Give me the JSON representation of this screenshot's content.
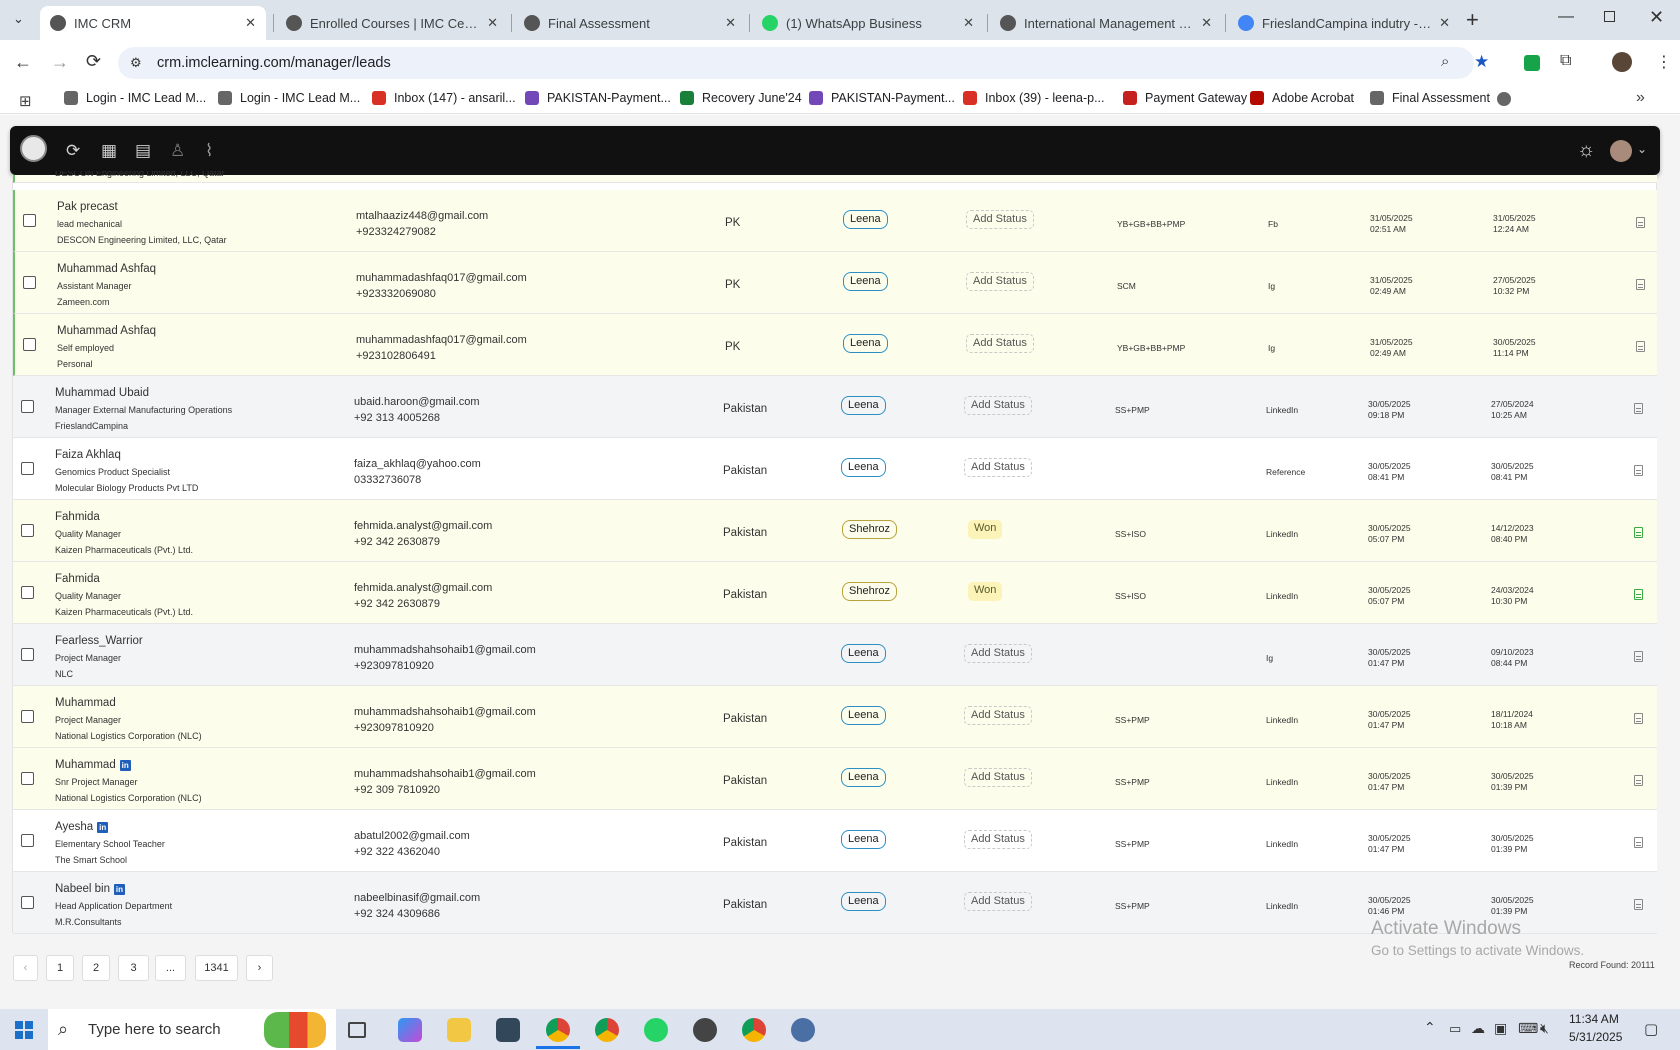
{
  "browser": {
    "tabs": [
      {
        "label": "IMC CRM",
        "active": true
      },
      {
        "label": "Enrolled Courses | IMC Certifica"
      },
      {
        "label": "Final Assessment"
      },
      {
        "label": "(1) WhatsApp Business"
      },
      {
        "label": "International Management Con"
      },
      {
        "label": "FrieslandCampina indutry - Goo"
      }
    ],
    "url": "crm.imclearning.com/manager/leads",
    "bookmarks": [
      "Login - IMC Lead M...",
      "Login - IMC Lead M...",
      "Inbox (147) - ansaril...",
      "PAKISTAN-Payment...",
      "Recovery June'24",
      "PAKISTAN-Payment...",
      "Inbox (39) - leena-p...",
      "Payment Gateway",
      "Adobe Acrobat",
      "Final Assessment"
    ]
  },
  "table": {
    "partial_top_company": "DESCON Engineering Limited, LLC, Qatar",
    "rows": [
      {
        "name": "Pak precast",
        "linkedin": false,
        "title": "lead mechanical",
        "company": "DESCON Engineering Limited, LLC, Qatar",
        "email": "mtalhaaziz448@gmail.com",
        "phone": "+923324279082",
        "country": "PK",
        "owner": "Leena",
        "status": "Add Status",
        "course": "YB+GB+BB+PMP",
        "source": "Fb",
        "date1": "31/05/2025",
        "time1": "02:51 AM",
        "date2": "31/05/2025",
        "time2": "12:24 AM",
        "bg": "yellow",
        "doc": "grey"
      },
      {
        "name": "Muhammad Ashfaq",
        "linkedin": false,
        "title": "Assistant Manager",
        "company": "Zameen.com",
        "email": "muhammadashfaq017@gmail.com",
        "phone": "+923332069080",
        "country": "PK",
        "owner": "Leena",
        "status": "Add Status",
        "course": "SCM",
        "source": "Ig",
        "date1": "31/05/2025",
        "time1": "02:49 AM",
        "date2": "27/05/2025",
        "time2": "10:32 PM",
        "bg": "yellow",
        "doc": "grey"
      },
      {
        "name": "Muhammad Ashfaq",
        "linkedin": false,
        "title": "Self employed",
        "company": "Personal",
        "email": "muhammadashfaq017@gmail.com",
        "phone": "+923102806491",
        "country": "PK",
        "owner": "Leena",
        "status": "Add Status",
        "course": "YB+GB+BB+PMP",
        "source": "Ig",
        "date1": "31/05/2025",
        "time1": "02:49 AM",
        "date2": "30/05/2025",
        "time2": "11:14 PM",
        "bg": "yellow",
        "doc": "grey"
      },
      {
        "name": "Muhammad Ubaid",
        "linkedin": false,
        "title": "Manager External Manufacturing Operations",
        "company": "FrieslandCampina",
        "email": "ubaid.haroon@gmail.com",
        "phone": "+92 313 4005268",
        "country": "Pakistan",
        "owner": "Leena",
        "status": "Add Status",
        "course": "SS+PMP",
        "source": "LinkedIn",
        "date1": "30/05/2025",
        "time1": "09:18 PM",
        "date2": "27/05/2024",
        "time2": "10:25 AM",
        "bg": "grey",
        "doc": "grey"
      },
      {
        "name": "Faiza Akhlaq",
        "linkedin": false,
        "title": "Genomics Product Specialist",
        "company": "Molecular Biology Products Pvt LTD",
        "email": "faiza_akhlaq@yahoo.com",
        "phone": "03332736078",
        "country": "Pakistan",
        "owner": "Leena",
        "status": "Add Status",
        "course": "",
        "source": "Reference",
        "date1": "30/05/2025",
        "time1": "08:41 PM",
        "date2": "30/05/2025",
        "time2": "08:41 PM",
        "bg": "white",
        "doc": "grey"
      },
      {
        "name": "Fahmida",
        "linkedin": false,
        "title": "Quality Manager",
        "company": "Kaizen Pharmaceuticals (Pvt.) Ltd.",
        "email": "fehmida.analyst@gmail.com",
        "phone": "+92 342 2630879",
        "country": "Pakistan",
        "owner": "Shehroz",
        "status": "Won",
        "course": "SS+ISO",
        "source": "LinkedIn",
        "date1": "30/05/2025",
        "time1": "05:07 PM",
        "date2": "14/12/2023",
        "time2": "08:40 PM",
        "bg": "yellow",
        "doc": "green"
      },
      {
        "name": "Fahmida",
        "linkedin": false,
        "title": "Quality Manager",
        "company": "Kaizen Pharmaceuticals (Pvt.) Ltd.",
        "email": "fehmida.analyst@gmail.com",
        "phone": "+92 342 2630879",
        "country": "Pakistan",
        "owner": "Shehroz",
        "status": "Won",
        "course": "SS+ISO",
        "source": "LinkedIn",
        "date1": "30/05/2025",
        "time1": "05:07 PM",
        "date2": "24/03/2024",
        "time2": "10:30 PM",
        "bg": "yellow",
        "doc": "green"
      },
      {
        "name": "Fearless_Warrior",
        "linkedin": false,
        "title": "Project Manager",
        "company": "NLC",
        "email": "muhammadshahsohaib1@gmail.com",
        "phone": "+923097810920",
        "country": "",
        "owner": "Leena",
        "status": "Add Status",
        "course": "",
        "source": "Ig",
        "date1": "30/05/2025",
        "time1": "01:47 PM",
        "date2": "09/10/2023",
        "time2": "08:44 PM",
        "bg": "grey",
        "doc": "grey"
      },
      {
        "name": "Muhammad",
        "linkedin": false,
        "title": "Project Manager",
        "company": "National Logistics Corporation (NLC)",
        "email": "muhammadshahsohaib1@gmail.com",
        "phone": "+923097810920",
        "country": "Pakistan",
        "owner": "Leena",
        "status": "Add Status",
        "course": "SS+PMP",
        "source": "LinkedIn",
        "date1": "30/05/2025",
        "time1": "01:47 PM",
        "date2": "18/11/2024",
        "time2": "10:18 AM",
        "bg": "yellow",
        "doc": "grey"
      },
      {
        "name": "Muhammad",
        "linkedin": true,
        "title": "Snr Project Manager",
        "company": "National Logistics Corporation (NLC)",
        "email": "muhammadshahsohaib1@gmail.com",
        "phone": "+92 309 7810920",
        "country": "Pakistan",
        "owner": "Leena",
        "status": "Add Status",
        "course": "SS+PMP",
        "source": "LinkedIn",
        "date1": "30/05/2025",
        "time1": "01:47 PM",
        "date2": "30/05/2025",
        "time2": "01:39 PM",
        "bg": "yellow",
        "doc": "grey"
      },
      {
        "name": "Ayesha",
        "linkedin": true,
        "title": "Elementary School Teacher",
        "company": "The Smart School",
        "email": "abatul2002@gmail.com",
        "phone": "+92 322 4362040",
        "country": "Pakistan",
        "owner": "Leena",
        "status": "Add Status",
        "course": "SS+PMP",
        "source": "LinkedIn",
        "date1": "30/05/2025",
        "time1": "01:47 PM",
        "date2": "30/05/2025",
        "time2": "01:39 PM",
        "bg": "white",
        "doc": "grey"
      },
      {
        "name": "Nabeel bin",
        "linkedin": true,
        "title": "Head Application Department",
        "company": "M.R.Consultants",
        "email": "nabeelbinasif@gmail.com",
        "phone": "+92 324 4309686",
        "country": "Pakistan",
        "owner": "Leena",
        "status": "Add Status",
        "course": "SS+PMP",
        "source": "LinkedIn",
        "date1": "30/05/2025",
        "time1": "01:46 PM",
        "date2": "30/05/2025",
        "time2": "01:39 PM",
        "bg": "grey",
        "doc": "grey"
      }
    ]
  },
  "pagination": {
    "pages": [
      "1",
      "2",
      "3",
      "...",
      "1341"
    ],
    "prev": "‹",
    "next": "›",
    "record_found": "Record Found: 20111"
  },
  "watermark": {
    "line1": "Activate Windows",
    "line2": "Go to Settings to activate Windows."
  },
  "taskbar": {
    "search_placeholder": "Type here to search",
    "time": "11:34 AM",
    "date": "5/31/2025"
  },
  "colors": {
    "owner_leena": "#2b8fc4",
    "owner_shehroz": "#b8a23c",
    "won_badge": "#fbf3b7",
    "row_yellow": "#fdfdeb",
    "row_grey": "#f3f4f6",
    "appbar": "#111111"
  }
}
